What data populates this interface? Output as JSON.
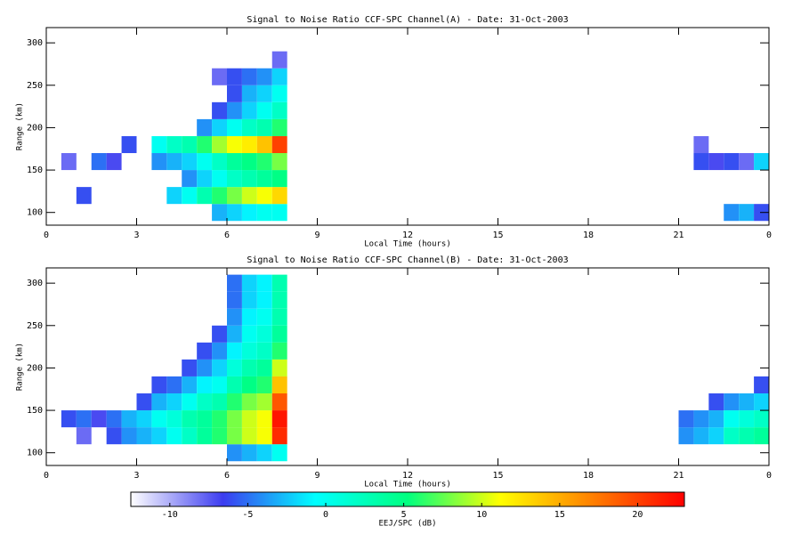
{
  "chart_data": [
    {
      "type": "heatmap",
      "title": "Signal to Noise Ratio CCF-SPC Channel(A) - Date: 31-Oct-2003",
      "xlabel": "Local Time (hours)",
      "ylabel": "Range (km)",
      "xlim": [
        0,
        24
      ],
      "xticks": [
        0,
        3,
        6,
        9,
        12,
        15,
        18,
        21,
        {
          "value": 24,
          "label": "0"
        }
      ],
      "ylim": [
        85,
        318
      ],
      "yticks": [
        100,
        150,
        200,
        250,
        300
      ],
      "x": [
        0.75,
        1.25,
        1.75,
        2.25,
        2.75,
        3.75,
        4.25,
        4.75,
        5.25,
        5.75,
        6.25,
        6.75,
        7.25,
        7.75,
        21.75,
        22.25,
        22.75,
        23.25,
        23.75
      ],
      "y": [
        100,
        120,
        140,
        160,
        180,
        200,
        220,
        240,
        260,
        280,
        300
      ],
      "z": [
        [
          null,
          null,
          null,
          -8,
          null,
          null,
          null,
          null,
          null,
          null,
          null
        ],
        [
          null,
          -6,
          null,
          null,
          null,
          null,
          null,
          null,
          null,
          null,
          null
        ],
        [
          null,
          null,
          null,
          -5,
          null,
          null,
          null,
          null,
          null,
          null,
          null
        ],
        [
          null,
          null,
          null,
          -7,
          null,
          null,
          null,
          null,
          null,
          null,
          null
        ],
        [
          null,
          null,
          null,
          null,
          -6,
          null,
          null,
          null,
          null,
          null,
          null
        ],
        [
          null,
          null,
          null,
          -4,
          0,
          null,
          null,
          null,
          null,
          null,
          null
        ],
        [
          null,
          -2,
          null,
          -3,
          2,
          null,
          null,
          null,
          null,
          null,
          null
        ],
        [
          null,
          0,
          -4,
          -2,
          3,
          null,
          null,
          null,
          null,
          null,
          null
        ],
        [
          null,
          3,
          -2,
          0,
          6,
          -4,
          null,
          null,
          null,
          null,
          null
        ],
        [
          -3,
          6,
          0,
          2,
          9,
          -2,
          -6,
          null,
          -8,
          null,
          null
        ],
        [
          -2,
          8,
          2,
          4,
          11,
          0,
          -4,
          -6,
          -6,
          null,
          null
        ],
        [
          -1,
          10,
          3,
          5,
          12,
          2,
          -2,
          -3,
          -5,
          null,
          null
        ],
        [
          0,
          11,
          4,
          6,
          14,
          3,
          0,
          -2,
          -4,
          null,
          null
        ],
        [
          0,
          13,
          5,
          8,
          20,
          6,
          2,
          0,
          -2,
          -8,
          null
        ],
        [
          null,
          null,
          null,
          -6,
          -8,
          null,
          null,
          null,
          null,
          null,
          null
        ],
        [
          null,
          null,
          null,
          -7,
          null,
          null,
          null,
          null,
          null,
          null,
          null
        ],
        [
          -4,
          null,
          null,
          -6,
          null,
          null,
          null,
          null,
          null,
          null,
          null
        ],
        [
          -3,
          null,
          null,
          -8,
          null,
          null,
          null,
          null,
          null,
          null,
          null
        ],
        [
          -6,
          null,
          null,
          -2,
          null,
          null,
          null,
          null,
          null,
          null,
          null
        ]
      ]
    },
    {
      "type": "heatmap",
      "title": "Signal to Noise Ratio CCF-SPC Channel(B) - Date: 31-Oct-2003",
      "xlabel": "Local Time (hours)",
      "ylabel": "Range (km)",
      "xlim": [
        0,
        24
      ],
      "xticks": [
        0,
        3,
        6,
        9,
        12,
        15,
        18,
        21,
        {
          "value": 24,
          "label": "0"
        }
      ],
      "ylim": [
        85,
        318
      ],
      "yticks": [
        100,
        150,
        200,
        250,
        300
      ],
      "x": [
        0.75,
        1.25,
        1.75,
        2.25,
        2.75,
        3.25,
        3.75,
        4.25,
        4.75,
        5.25,
        5.75,
        6.25,
        6.75,
        7.25,
        7.75,
        21.25,
        21.75,
        22.25,
        22.75,
        23.25,
        23.75
      ],
      "y": [
        100,
        120,
        140,
        160,
        180,
        200,
        220,
        240,
        260,
        280,
        300
      ],
      "z": [
        [
          null,
          null,
          -6,
          null,
          null,
          null,
          null,
          null,
          null,
          null,
          null
        ],
        [
          null,
          -8,
          -5,
          null,
          null,
          null,
          null,
          null,
          null,
          null,
          null
        ],
        [
          null,
          null,
          -7,
          null,
          null,
          null,
          null,
          null,
          null,
          null,
          null
        ],
        [
          null,
          -6,
          -5,
          null,
          null,
          null,
          null,
          null,
          null,
          null,
          null
        ],
        [
          null,
          -4,
          -3,
          null,
          null,
          null,
          null,
          null,
          null,
          null,
          null
        ],
        [
          null,
          -3,
          -2,
          -6,
          null,
          null,
          null,
          null,
          null,
          null,
          null
        ],
        [
          null,
          -2,
          0,
          -3,
          -6,
          null,
          null,
          null,
          null,
          null,
          null
        ],
        [
          null,
          0,
          1,
          -2,
          -5,
          null,
          null,
          null,
          null,
          null,
          null
        ],
        [
          null,
          2,
          3,
          0,
          -3,
          -6,
          null,
          null,
          null,
          null,
          null
        ],
        [
          null,
          4,
          4,
          2,
          -1,
          -4,
          -6,
          null,
          null,
          null,
          null
        ],
        [
          null,
          6,
          6,
          3,
          0,
          -2,
          -4,
          -6,
          null,
          null,
          null
        ],
        [
          -4,
          8,
          8,
          6,
          3,
          1,
          -1,
          -3,
          -4,
          -5,
          -5
        ],
        [
          -3,
          10,
          10,
          8,
          5,
          3,
          1,
          0,
          -1,
          -2,
          -2
        ],
        [
          -2,
          11,
          11,
          9,
          6,
          4,
          2,
          1,
          0,
          -1,
          -1
        ],
        [
          0,
          21,
          22,
          19,
          14,
          10,
          6,
          4,
          3,
          3,
          3
        ],
        [
          null,
          -4,
          -5,
          null,
          null,
          null,
          null,
          null,
          null,
          null,
          null
        ],
        [
          null,
          -3,
          -4,
          null,
          null,
          null,
          null,
          null,
          null,
          null,
          null
        ],
        [
          null,
          -2,
          -3,
          -6,
          null,
          null,
          null,
          null,
          null,
          null,
          null
        ],
        [
          null,
          2,
          0,
          -4,
          null,
          null,
          null,
          null,
          null,
          null,
          null
        ],
        [
          null,
          3,
          1,
          -3,
          null,
          null,
          null,
          null,
          null,
          null,
          null
        ],
        [
          null,
          4,
          2,
          -2,
          -6,
          null,
          null,
          null,
          null,
          null,
          null
        ]
      ]
    },
    {
      "type": "colorbar",
      "label": "EEJ/SPC (dB)",
      "zlim": [
        -12.5,
        23
      ],
      "zticks": [
        -10,
        -5,
        0,
        5,
        10,
        15,
        20
      ],
      "colors": [
        "#ffffff",
        "#3c3cf0",
        "#00ffff",
        "#00ff80",
        "#ffff00",
        "#ff8000",
        "#ff0000"
      ]
    }
  ]
}
